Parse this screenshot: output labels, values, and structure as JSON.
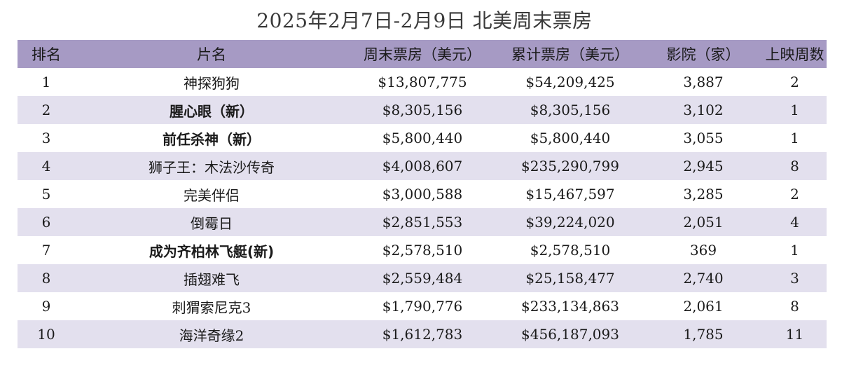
{
  "title": "2025年2月7日-2月9日  北美周末票房",
  "headers": {
    "rank": "排名",
    "film": "片名",
    "weekend": "周末票房（美元）",
    "total": "累计票房（美元）",
    "theaters": "影院（家）",
    "weeks": "上映周数"
  },
  "colors": {
    "header_bg": "#a69ac4",
    "stripe_bg": "#e3e0ee"
  },
  "rows": [
    {
      "rank": "1",
      "film": "神探狗狗",
      "weekend": "$13,807,775",
      "total": "$54,209,425",
      "theaters": "3,887",
      "weeks": "2",
      "is_new": false
    },
    {
      "rank": "2",
      "film": "腥心眼（新）",
      "weekend": "$8,305,156",
      "total": "$8,305,156",
      "theaters": "3,102",
      "weeks": "1",
      "is_new": true
    },
    {
      "rank": "3",
      "film": "前任杀神（新）",
      "weekend": "$5,800,440",
      "total": "$5,800,440",
      "theaters": "3,055",
      "weeks": "1",
      "is_new": true
    },
    {
      "rank": "4",
      "film": "狮子王：木法沙传奇",
      "weekend": "$4,008,607",
      "total": "$235,290,799",
      "theaters": "2,945",
      "weeks": "8",
      "is_new": false
    },
    {
      "rank": "5",
      "film": "完美伴侣",
      "weekend": "$3,000,588",
      "total": "$15,467,597",
      "theaters": "3,285",
      "weeks": "2",
      "is_new": false
    },
    {
      "rank": "6",
      "film": "倒霉日",
      "weekend": "$2,851,553",
      "total": "$39,224,020",
      "theaters": "2,051",
      "weeks": "4",
      "is_new": false
    },
    {
      "rank": "7",
      "film": "成为齐柏林飞艇(新)",
      "weekend": "$2,578,510",
      "total": "$2,578,510",
      "theaters": "369",
      "weeks": "1",
      "is_new": true
    },
    {
      "rank": "8",
      "film": "插翅难飞",
      "weekend": "$2,559,484",
      "total": "$25,158,477",
      "theaters": "2,740",
      "weeks": "3",
      "is_new": false
    },
    {
      "rank": "9",
      "film": "刺猬索尼克3",
      "weekend": "$1,790,776",
      "total": "$233,134,863",
      "theaters": "2,061",
      "weeks": "8",
      "is_new": false
    },
    {
      "rank": "10",
      "film": "海洋奇缘2",
      "weekend": "$1,612,783",
      "total": "$456,187,093",
      "theaters": "1,785",
      "weeks": "11",
      "is_new": false
    }
  ]
}
